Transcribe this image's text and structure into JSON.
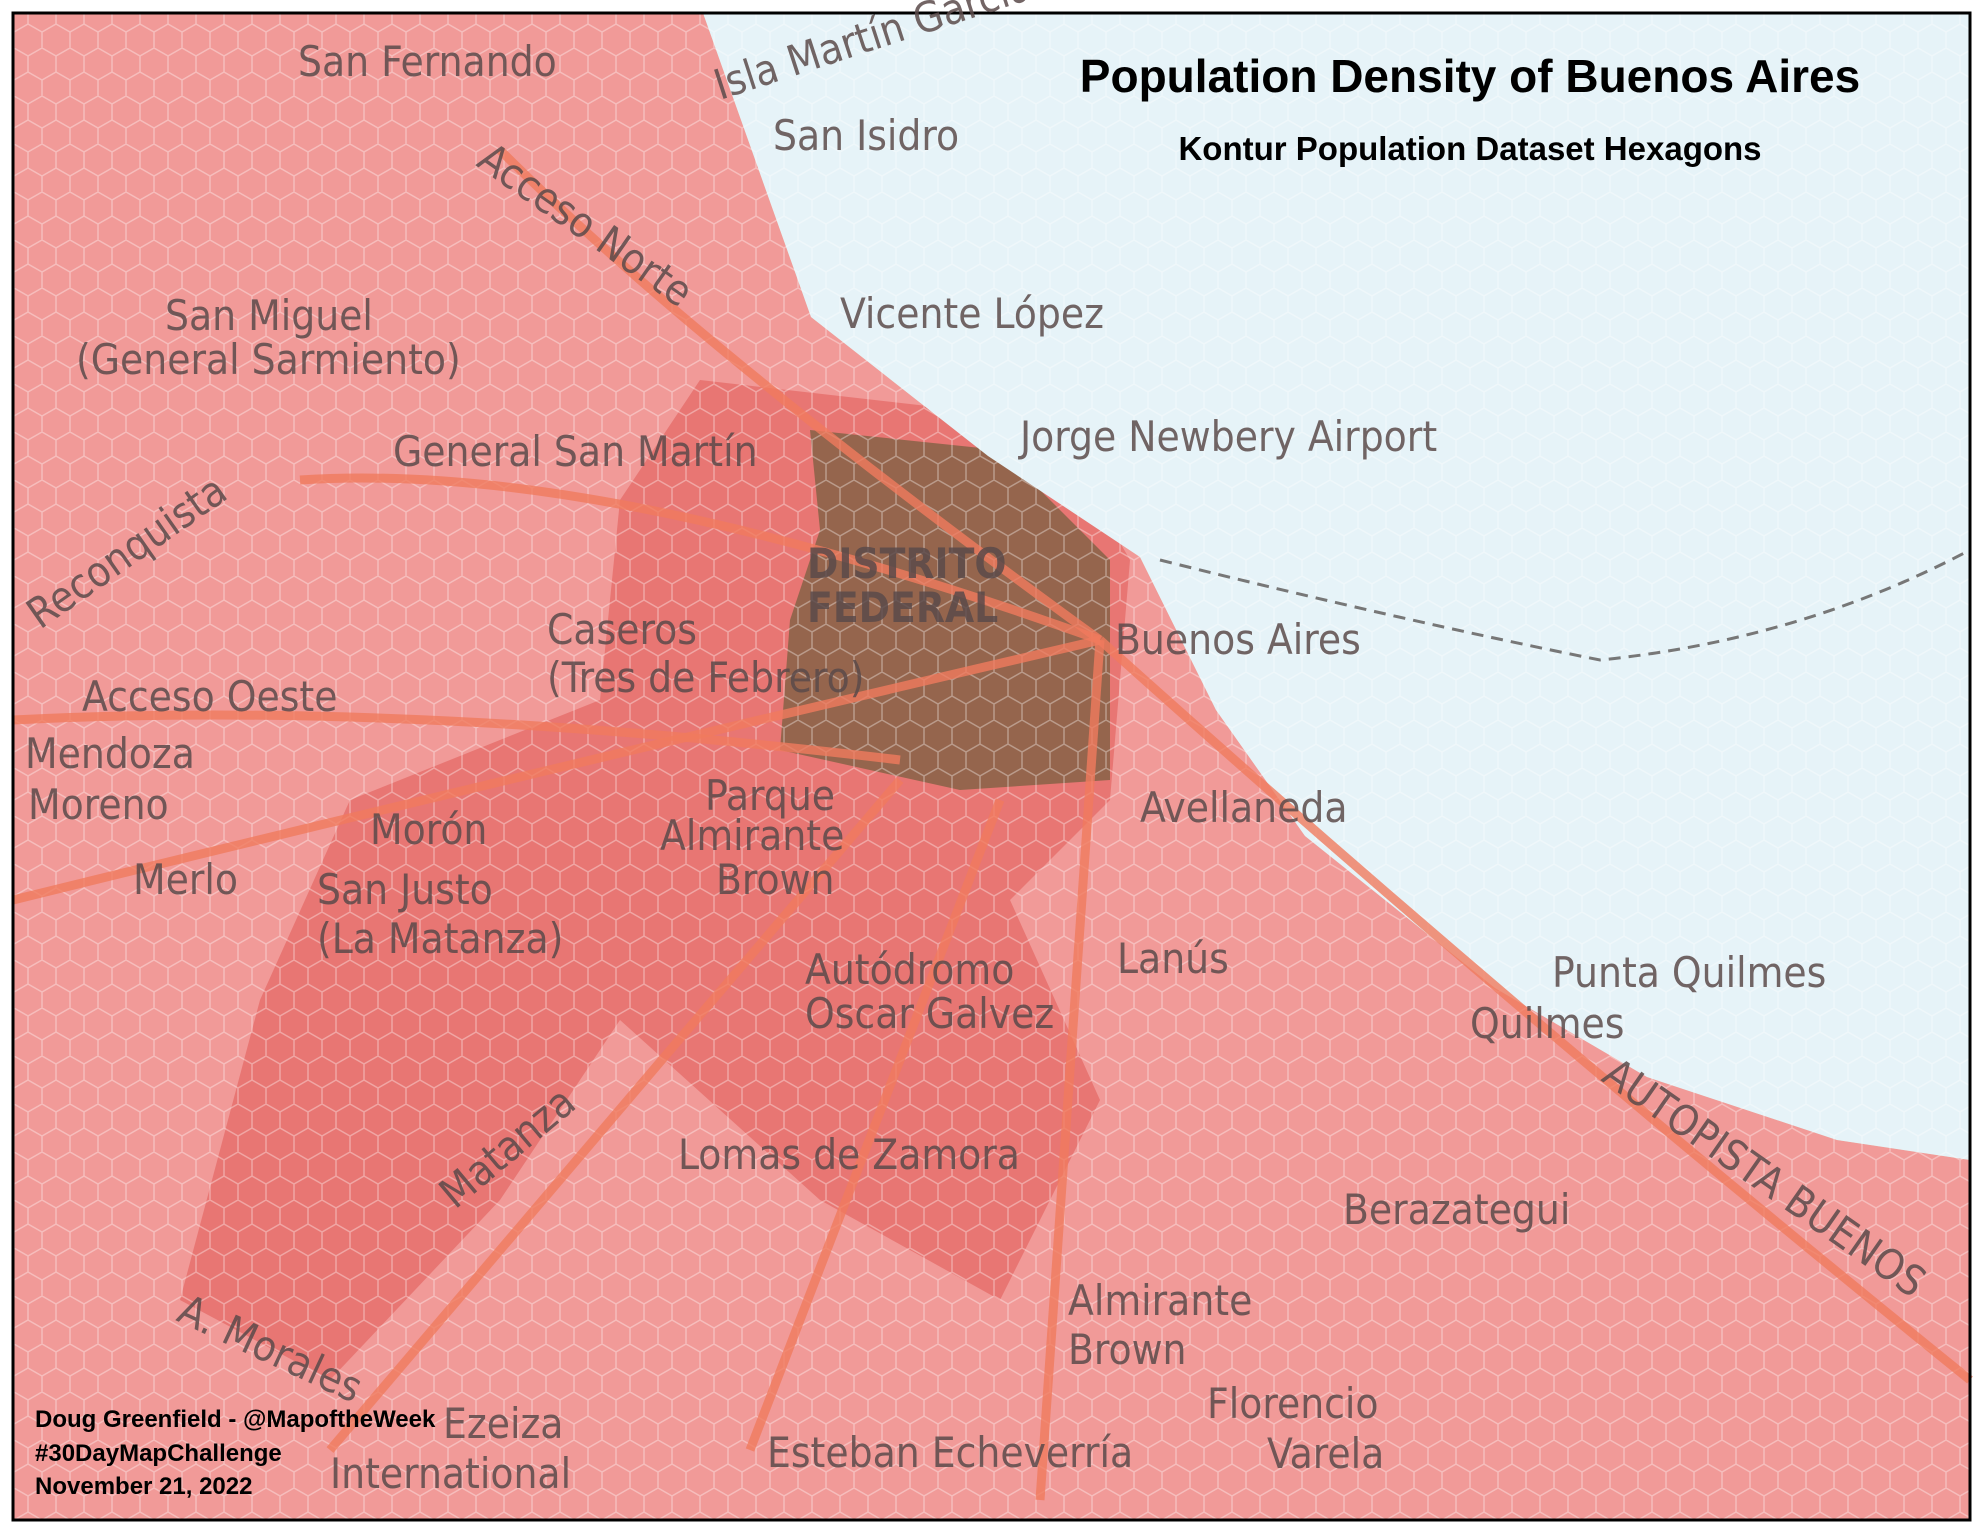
{
  "header": {
    "title": "Population Density of Buenos Aires",
    "subtitle": "Kontur Population Dataset Hexagons"
  },
  "credits": [
    "Doug Greenfield - @MapoftheWeek",
    "#30DayMapChallenge",
    "November 21, 2022"
  ],
  "places": [
    "San Fernando",
    "Isla Martín García",
    "San Isidro",
    "Acceso Norte",
    "San Miguel",
    "(General Sarmiento)",
    "Vicente López",
    "Jorge Newbery Airport",
    "General San Martín",
    "Reconquista",
    "DISTRITO",
    "FEDERAL",
    "Caseros",
    "(Tres de Febrero)",
    "Buenos Aires",
    "Acceso  Oeste",
    "Mendoza",
    "Moreno",
    "Morón",
    "Parque",
    "Almirante",
    "Brown",
    "Avellaneda",
    "Merlo",
    "San Justo",
    "(La Matanza)",
    "Autódromo",
    "Oscar Galvez",
    "Lanús",
    "Punta Quilmes",
    "Quilmes",
    "AUTOPISTA BUENOS",
    "Matanza",
    "Lomas de Zamora",
    "Berazategui",
    "Almirante",
    "Brown",
    "A. Morales",
    "Florencio",
    "Varela",
    "Ezeiza",
    "International",
    "Esteban Echeverría"
  ]
}
